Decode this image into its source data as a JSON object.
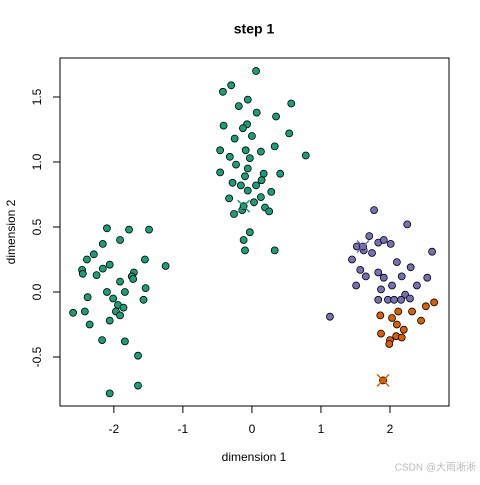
{
  "chart_data": {
    "type": "scatter",
    "title": "step 1",
    "xlabel": "dimension 1",
    "ylabel": "dimension 2",
    "xlim": [
      -2.78,
      2.855
    ],
    "ylim": [
      -0.877,
      1.8
    ],
    "xticks": [
      -2,
      -1,
      0,
      1,
      2
    ],
    "yticks": [
      {
        "value": -0.5,
        "label": "-0.5"
      },
      {
        "value": 0,
        "label": "0.0"
      },
      0.5,
      {
        "value": 1,
        "label": "1.0"
      },
      1.5
    ],
    "series": [
      {
        "color": "#1b9e77",
        "x": [
          -2.1,
          -1.78,
          -1.49,
          -1.91,
          -2.16,
          -2.29,
          -2.39,
          -2.06,
          -2.16,
          -1.55,
          -1.71,
          -2.46,
          -2.45,
          -2.25,
          -1.74,
          -1.72,
          -1.91,
          -1.25,
          -1.54,
          -2.1,
          -1.84,
          -2.38,
          -2.01,
          -1.57,
          -1.94,
          -1.86,
          -2.59,
          -2.42,
          -1.97,
          -1.91,
          -2.06,
          -2.35,
          -2.17,
          -1.84,
          -1.65,
          -2.06,
          -1.65,
          0.06,
          -0.3,
          -0.42,
          -0.06,
          -0.19,
          0.57,
          0.07,
          -0.07,
          -0.13,
          0.35,
          -0.41,
          0.54,
          0,
          -0.25,
          0.33,
          -0.09,
          -0.46,
          0.13,
          -0.32,
          0.78,
          -0.03,
          -0.23,
          -0.06,
          -0.46,
          0.41,
          -0.1,
          0.17,
          -0.28,
          -0.16,
          0.14,
          0.06,
          -0.06,
          0.28,
          0.13,
          -0.33,
          0.03,
          0.19,
          -0.14,
          -0.26,
          0.25,
          -0.03,
          -0.12,
          -0.1,
          0.33
        ],
        "y": [
          0.49,
          0.48,
          0.48,
          0.4,
          0.37,
          0.29,
          0.25,
          0.21,
          0.18,
          0.25,
          0.15,
          0.17,
          0.14,
          0.13,
          0.12,
          0.1,
          0.08,
          0.2,
          0.03,
          0.0,
          0.0,
          -0.04,
          -0.05,
          -0.06,
          -0.1,
          -0.12,
          -0.16,
          -0.15,
          -0.15,
          -0.18,
          -0.22,
          -0.25,
          -0.37,
          -0.38,
          -0.49,
          -0.78,
          -0.72,
          1.7,
          1.59,
          1.54,
          1.48,
          1.43,
          1.45,
          1.38,
          1.29,
          1.26,
          1.35,
          1.28,
          1.22,
          1.2,
          1.18,
          1.12,
          1.09,
          1.09,
          1.08,
          1.04,
          1.05,
          1.03,
          0.98,
          0.95,
          0.92,
          0.91,
          0.89,
          0.91,
          0.84,
          0.82,
          0.86,
          0.82,
          0.78,
          0.77,
          0.73,
          0.72,
          0.69,
          0.65,
          0.63,
          0.6,
          0.62,
          0.46,
          0.4,
          0.32,
          0.32
        ]
      },
      {
        "color": "#7570b3",
        "x": [
          1.77,
          2.25,
          1.7,
          1.83,
          1.91,
          2.01,
          1.52,
          1.62,
          1.74,
          2.61,
          1.45,
          2.1,
          2.3,
          1.57,
          1.83,
          1.65,
          1.91,
          2.17,
          2.54,
          1.51,
          2.03,
          2.39,
          1.87,
          2.22,
          1.83,
          1.97,
          2.06,
          2.16,
          2.29,
          1.13
        ],
        "y": [
          0.63,
          0.52,
          0.43,
          0.38,
          0.4,
          0.37,
          0.35,
          0.32,
          0.3,
          0.31,
          0.25,
          0.23,
          0.19,
          0.17,
          0.15,
          0.12,
          0.11,
          0.12,
          0.11,
          0.05,
          0.05,
          0.05,
          0.02,
          -0.02,
          -0.06,
          -0.06,
          -0.06,
          -0.06,
          -0.05,
          -0.19
        ]
      },
      {
        "color": "#d95f02",
        "x": [
          2.64,
          2.52,
          2.32,
          2.12,
          1.86,
          2.03,
          2.45,
          2.1,
          2.2,
          1.87,
          2.09,
          2.0,
          2.17,
          1.99
        ],
        "y": [
          -0.08,
          -0.11,
          -0.15,
          -0.15,
          -0.18,
          -0.2,
          -0.22,
          -0.25,
          -0.29,
          -0.32,
          -0.34,
          -0.37,
          -0.35,
          -0.4
        ]
      },
      {
        "marker": "cross",
        "colors": [
          "#1b9e77",
          "#7570b3",
          "#d95f02"
        ],
        "x": [
          -0.12,
          1.61,
          1.9
        ],
        "y": [
          0.66,
          0.35,
          -0.68
        ]
      }
    ]
  },
  "watermark": "CSDN @大雨淅淅"
}
